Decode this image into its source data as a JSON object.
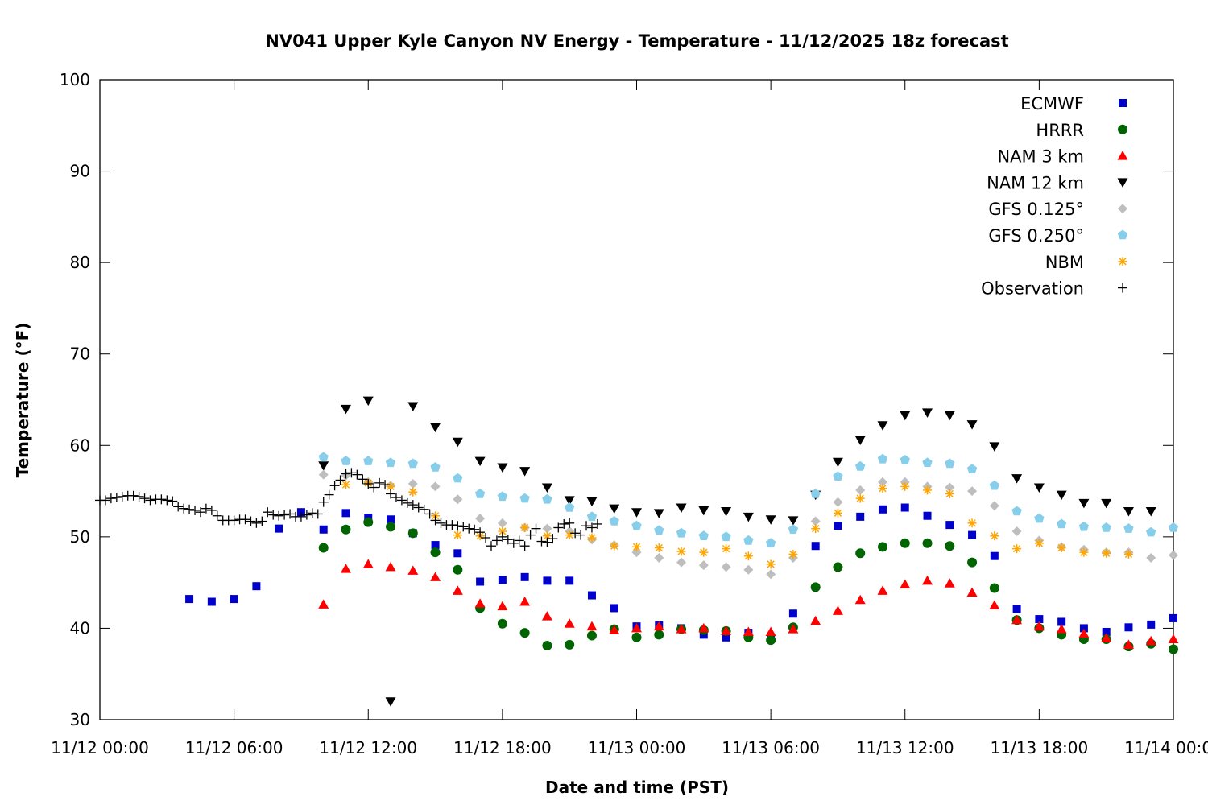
{
  "chart_data": {
    "type": "scatter",
    "title": "NV041 Upper Kyle Canyon NV Energy - Temperature - 11/12/2025 18z forecast",
    "xlabel": "Date and time (PST)",
    "ylabel": "Temperature (°F)",
    "x_units": "hours since 11/12 00:00 PST",
    "xlim": [
      0,
      48
    ],
    "ylim": [
      30,
      100
    ],
    "x_ticks": [
      {
        "value": 0,
        "label": "11/12 00:00"
      },
      {
        "value": 6,
        "label": "11/12 06:00"
      },
      {
        "value": 12,
        "label": "11/12 12:00"
      },
      {
        "value": 18,
        "label": "11/12 18:00"
      },
      {
        "value": 24,
        "label": "11/13 00:00"
      },
      {
        "value": 30,
        "label": "11/13 06:00"
      },
      {
        "value": 36,
        "label": "11/13 12:00"
      },
      {
        "value": 42,
        "label": "11/13 18:00"
      },
      {
        "value": 48,
        "label": "11/14 00:00"
      }
    ],
    "y_ticks": [
      30,
      40,
      50,
      60,
      70,
      80,
      90,
      100
    ],
    "grid": false,
    "legend_position": "top-right",
    "series": [
      {
        "name": "ECMWF",
        "marker": "square",
        "color": "#0000cc",
        "x": [
          4,
          5,
          6,
          7,
          8,
          9,
          10,
          11,
          12,
          13,
          14,
          15,
          16,
          17,
          18,
          19,
          20,
          21,
          22,
          23,
          24,
          25,
          26,
          27,
          28,
          29,
          30,
          31,
          32,
          33,
          34,
          35,
          36,
          37,
          38,
          39,
          40,
          41,
          42,
          43,
          44,
          45,
          46,
          47,
          48
        ],
        "y": [
          43.2,
          42.9,
          43.2,
          44.6,
          50.9,
          52.7,
          50.8,
          52.6,
          52.1,
          51.9,
          50.4,
          49.1,
          48.2,
          45.1,
          45.3,
          45.6,
          45.2,
          45.2,
          43.6,
          42.2,
          40.2,
          40.3,
          40.0,
          39.3,
          39.0,
          39.5,
          38.9,
          41.6,
          49.0,
          51.2,
          52.2,
          53.0,
          53.2,
          52.3,
          51.3,
          50.2,
          47.9,
          42.1,
          41.0,
          40.7,
          40.0,
          39.6,
          40.1,
          40.4,
          41.1
        ]
      },
      {
        "name": "HRRR",
        "marker": "circle",
        "color": "#006400",
        "x": [
          10,
          11,
          12,
          13,
          14,
          15,
          16,
          17,
          18,
          19,
          20,
          21,
          22,
          23,
          24,
          25,
          26,
          27,
          28,
          29,
          30,
          31,
          32,
          33,
          34,
          35,
          36,
          37,
          38,
          39,
          40,
          41,
          42,
          43,
          44,
          45,
          46,
          47,
          48
        ],
        "y": [
          48.8,
          50.8,
          51.6,
          51.1,
          50.4,
          48.3,
          46.4,
          42.2,
          40.5,
          39.5,
          38.1,
          38.2,
          39.2,
          39.9,
          39.0,
          39.3,
          39.9,
          39.8,
          39.7,
          39.0,
          38.7,
          40.1,
          44.5,
          46.7,
          48.2,
          48.9,
          49.3,
          49.3,
          49.0,
          47.2,
          44.4,
          40.9,
          40.0,
          39.3,
          38.8,
          38.8,
          38.0,
          38.3,
          37.7
        ]
      },
      {
        "name": "NAM 3 km",
        "marker": "triangle-up",
        "color": "#ff0000",
        "x": [
          10,
          11,
          12,
          13,
          14,
          15,
          16,
          17,
          18,
          19,
          20,
          21,
          22,
          23,
          24,
          25,
          26,
          27,
          28,
          29,
          30,
          31,
          32,
          33,
          34,
          35,
          36,
          37,
          38,
          39,
          40,
          41,
          42,
          43,
          44,
          45,
          46,
          47,
          48
        ],
        "y": [
          42.6,
          46.5,
          47.0,
          46.7,
          46.3,
          45.6,
          44.1,
          42.7,
          42.4,
          42.9,
          41.3,
          40.5,
          40.2,
          39.8,
          40.0,
          40.2,
          39.9,
          40.0,
          39.7,
          39.6,
          39.6,
          39.9,
          40.8,
          41.9,
          43.1,
          44.1,
          44.8,
          45.2,
          44.9,
          43.9,
          42.5,
          40.9,
          40.2,
          39.9,
          39.4,
          38.9,
          38.2,
          38.6,
          38.8
        ]
      },
      {
        "name": "NAM 12 km",
        "marker": "triangle-down",
        "color": "#000000",
        "x": [
          10,
          11,
          12,
          13,
          14,
          15,
          16,
          17,
          18,
          19,
          20,
          21,
          22,
          23,
          24,
          25,
          26,
          27,
          28,
          29,
          30,
          31,
          32,
          33,
          34,
          35,
          36,
          37,
          38,
          39,
          40,
          41,
          42,
          43,
          44,
          45,
          46,
          47
        ],
        "y": [
          57.8,
          64.0,
          64.9,
          32.0,
          64.3,
          62.0,
          60.4,
          58.3,
          57.6,
          57.2,
          55.4,
          54.0,
          53.9,
          53.1,
          52.7,
          52.6,
          53.2,
          52.9,
          52.8,
          52.2,
          51.9,
          51.8,
          54.6,
          58.2,
          60.6,
          62.2,
          63.3,
          63.6,
          63.3,
          62.3,
          59.9,
          56.4,
          55.4,
          54.6,
          53.7,
          53.7,
          52.8,
          52.8
        ]
      },
      {
        "name": "GFS 0.125°",
        "marker": "diamond",
        "color": "#bebebe",
        "x": [
          10,
          11,
          12,
          13,
          14,
          15,
          16,
          17,
          18,
          19,
          20,
          21,
          22,
          23,
          24,
          25,
          26,
          27,
          28,
          29,
          30,
          31,
          32,
          33,
          34,
          35,
          36,
          37,
          38,
          39,
          40,
          41,
          42,
          43,
          44,
          45,
          46,
          47,
          48
        ],
        "y": [
          56.8,
          56.7,
          56.0,
          55.6,
          55.8,
          55.5,
          54.1,
          52.0,
          51.5,
          51.0,
          50.9,
          50.6,
          49.7,
          49.1,
          48.3,
          47.7,
          47.2,
          46.9,
          46.7,
          46.4,
          45.9,
          47.7,
          51.7,
          53.8,
          55.1,
          56.0,
          56.0,
          55.5,
          55.4,
          55.0,
          53.4,
          50.6,
          49.6,
          48.9,
          48.6,
          48.3,
          48.3,
          47.7,
          48.0
        ]
      },
      {
        "name": "GFS 0.250°",
        "marker": "pentagon",
        "color": "#87ceeb",
        "x": [
          10,
          11,
          12,
          13,
          14,
          15,
          16,
          17,
          18,
          19,
          20,
          21,
          22,
          23,
          24,
          25,
          26,
          27,
          28,
          29,
          30,
          31,
          32,
          33,
          34,
          35,
          36,
          37,
          38,
          39,
          40,
          41,
          42,
          43,
          44,
          45,
          46,
          47,
          48
        ],
        "y": [
          58.7,
          58.3,
          58.3,
          58.1,
          58.0,
          57.6,
          56.4,
          54.7,
          54.4,
          54.2,
          54.1,
          53.2,
          52.2,
          51.7,
          51.2,
          50.7,
          50.4,
          50.1,
          50.0,
          49.6,
          49.3,
          50.8,
          54.7,
          56.6,
          57.7,
          58.5,
          58.4,
          58.1,
          58.0,
          57.4,
          55.6,
          52.8,
          52.0,
          51.4,
          51.1,
          51.0,
          50.9,
          50.5,
          51.0
        ]
      },
      {
        "name": "NBM",
        "marker": "star",
        "color": "#ffa500",
        "x": [
          11,
          12,
          13,
          14,
          15,
          16,
          17,
          18,
          19,
          20,
          21,
          22,
          23,
          24,
          25,
          26,
          27,
          28,
          29,
          30,
          31,
          32,
          33,
          34,
          35,
          36,
          37,
          38,
          39,
          40,
          41,
          42,
          43,
          44,
          45,
          46
        ],
        "y": [
          55.7,
          55.9,
          55.5,
          54.9,
          52.3,
          50.2,
          50.1,
          50.6,
          51.0,
          50.1,
          50.2,
          49.9,
          49.0,
          48.9,
          48.8,
          48.4,
          48.3,
          48.7,
          47.9,
          47.0,
          48.1,
          50.9,
          52.6,
          54.2,
          55.3,
          55.5,
          55.1,
          54.7,
          51.5,
          50.1,
          48.7,
          49.3,
          48.8,
          48.3,
          48.2,
          48.1
        ]
      },
      {
        "name": "Observation",
        "marker": "plus",
        "color": "#000000",
        "x": [
          0,
          0.25,
          0.5,
          0.75,
          1,
          1.25,
          1.5,
          1.75,
          2,
          2.25,
          2.5,
          2.75,
          3,
          3.25,
          3.5,
          3.75,
          4,
          4.25,
          4.5,
          4.75,
          5,
          5.25,
          5.5,
          5.75,
          6,
          6.25,
          6.5,
          6.75,
          7,
          7.25,
          7.5,
          7.75,
          8,
          8.25,
          8.5,
          8.75,
          9,
          9.25,
          9.5,
          9.75,
          10,
          10.25,
          10.5,
          10.75,
          11,
          11.25,
          11.5,
          11.75,
          12,
          12.25,
          12.5,
          12.75,
          13,
          13.25,
          13.5,
          13.75,
          14,
          14.25,
          14.5,
          14.75,
          15,
          15.25,
          15.5,
          15.75,
          16,
          16.25,
          16.5,
          16.75,
          17,
          17.25,
          17.5,
          17.75,
          18,
          18.25,
          18.5,
          18.75,
          19,
          19.25,
          19.5,
          19.75,
          20,
          20.25,
          20.5,
          20.75,
          21,
          21.25,
          21.5,
          21.75,
          22,
          22.25
        ],
        "y": [
          54.0,
          54.0,
          54.2,
          54.3,
          54.4,
          54.5,
          54.5,
          54.4,
          54.2,
          54.0,
          54.1,
          54.1,
          54.0,
          53.9,
          53.3,
          53.1,
          53.0,
          52.9,
          52.7,
          53.1,
          52.9,
          52.3,
          51.8,
          51.8,
          51.8,
          51.9,
          51.9,
          51.7,
          51.5,
          51.7,
          52.7,
          52.4,
          52.3,
          52.4,
          52.5,
          52.2,
          52.2,
          52.4,
          52.6,
          52.5,
          53.8,
          54.6,
          55.6,
          56.2,
          56.9,
          57.0,
          56.8,
          56.3,
          55.8,
          55.4,
          55.9,
          55.7,
          54.7,
          54.3,
          54.0,
          53.7,
          53.5,
          53.2,
          53.0,
          52.5,
          51.8,
          51.5,
          51.3,
          51.3,
          51.2,
          51.1,
          50.9,
          50.8,
          50.5,
          49.9,
          49.0,
          49.6,
          50.0,
          49.7,
          49.3,
          49.6,
          49.0,
          50.2,
          50.9,
          49.5,
          49.4,
          49.8,
          51.0,
          51.4,
          51.5,
          50.4,
          50.2,
          51.2,
          51.0,
          51.4
        ]
      }
    ]
  }
}
